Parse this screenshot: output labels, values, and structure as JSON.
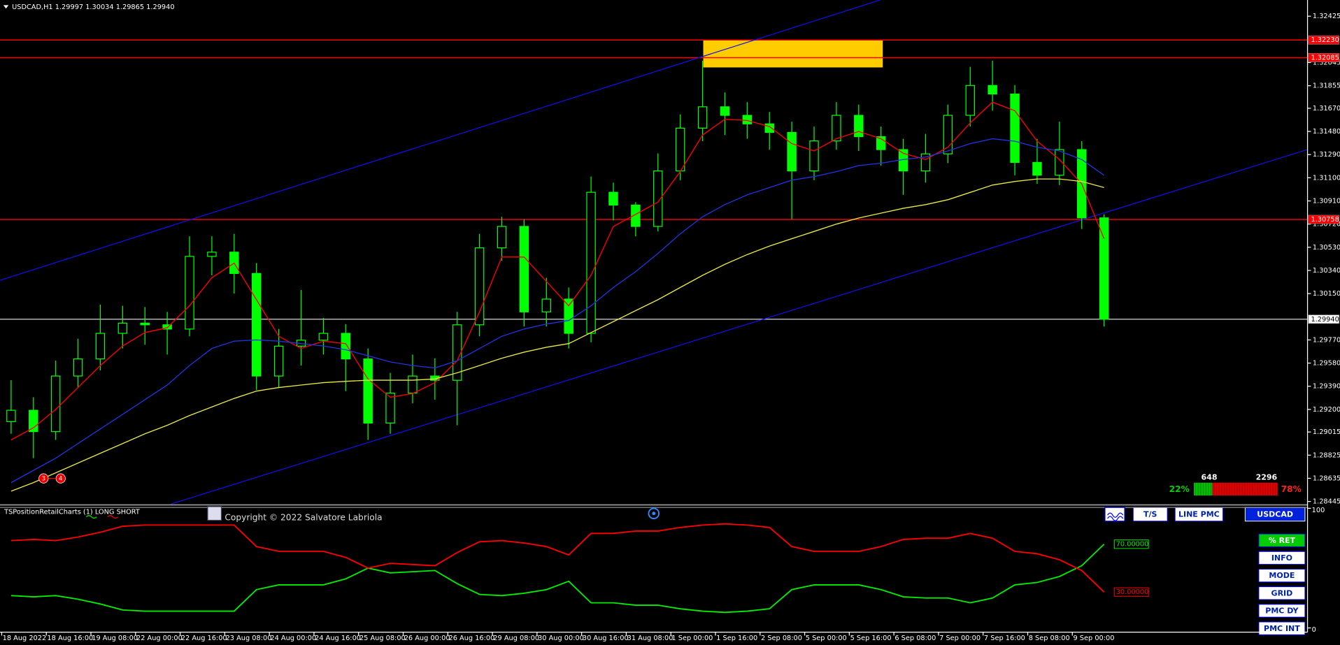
{
  "chart_data": [
    {
      "type": "candlestick",
      "title": "USDCAD,H1  1.29997 1.30034 1.29865 1.29940",
      "color": "#00ff00",
      "categories": [
        "18 Aug 2022",
        null,
        "18 Aug 16:00",
        null,
        "19 Aug 08:00",
        null,
        "22 Aug 00:00",
        null,
        "22 Aug 16:00",
        null,
        "23 Aug 08:00",
        null,
        "24 Aug 00:00",
        null,
        "24 Aug 16:00",
        null,
        "25 Aug 08:00",
        null,
        "26 Aug 00:00",
        null,
        "26 Aug 16:00",
        null,
        "29 Aug 08:00",
        null,
        "30 Aug 00:00",
        null,
        "30 Aug 16:00",
        null,
        "31 Aug 08:00",
        null,
        "1 Sep 00:00",
        null,
        "1 Sep 16:00",
        null,
        "2 Sep 08:00",
        null,
        "5 Sep 00:00",
        null,
        "5 Sep 16:00",
        null,
        "6 Sep 08:00",
        null,
        "7 Sep 00:00",
        null,
        "7 Sep 16:00",
        null,
        "8 Sep 08:00",
        null,
        "9 Sep 00:00",
        null
      ],
      "open": [
        1.291,
        1.29193,
        1.29018,
        1.29474,
        1.29614,
        1.29824,
        1.29908,
        1.29894,
        1.29859,
        1.30455,
        1.3049,
        1.30315,
        1.29474,
        1.29719,
        1.29768,
        1.29824,
        1.29614,
        1.29088,
        1.29334,
        1.29474,
        1.29439,
        1.29894,
        1.30525,
        1.30701,
        1.3,
        1.30105,
        1.29824,
        1.30981,
        1.30876,
        1.30701,
        1.31156,
        1.31507,
        1.31682,
        1.31612,
        1.31542,
        1.31472,
        1.31156,
        1.31402,
        1.31612,
        1.31437,
        1.31331,
        1.31156,
        1.31296,
        1.31612,
        1.31857,
        1.31787,
        1.31226,
        1.31121,
        1.31331,
        1.30771
      ],
      "high": [
        1.2944,
        1.293,
        1.296,
        1.2978,
        1.3006,
        1.3005,
        1.3004,
        1.3,
        1.3062,
        1.3062,
        1.3064,
        1.304,
        1.2986,
        1.3018,
        1.2995,
        1.299,
        1.297,
        1.295,
        1.2965,
        1.2962,
        1.3,
        1.3064,
        1.3078,
        1.3076,
        1.3028,
        1.302,
        1.3111,
        1.3106,
        1.309,
        1.313,
        1.3162,
        1.3206,
        1.318,
        1.3172,
        1.3164,
        1.3156,
        1.3152,
        1.3172,
        1.317,
        1.3152,
        1.3142,
        1.3146,
        1.317,
        1.3201,
        1.3206,
        1.3186,
        1.3142,
        1.3156,
        1.314,
        1.308
      ],
      "low": [
        1.29,
        1.288,
        1.2895,
        1.2938,
        1.2952,
        1.297,
        1.2973,
        1.2965,
        1.298,
        1.303,
        1.3015,
        1.2936,
        1.2938,
        1.2956,
        1.2965,
        1.2935,
        1.2895,
        1.29,
        1.2925,
        1.2928,
        1.2907,
        1.298,
        1.3042,
        1.2988,
        1.2988,
        1.297,
        1.2975,
        1.3075,
        1.3062,
        1.3066,
        1.3108,
        1.314,
        1.3145,
        1.3142,
        1.3133,
        1.3076,
        1.3108,
        1.3133,
        1.3132,
        1.312,
        1.3096,
        1.3106,
        1.3122,
        1.3152,
        1.3165,
        1.3112,
        1.3105,
        1.3104,
        1.3068,
        1.2988
      ],
      "close": [
        1.29193,
        1.29018,
        1.29474,
        1.29614,
        1.29824,
        1.29908,
        1.29894,
        1.29859,
        1.30455,
        1.3049,
        1.30315,
        1.29474,
        1.29719,
        1.29768,
        1.29824,
        1.29614,
        1.29088,
        1.29334,
        1.29474,
        1.29439,
        1.29894,
        1.30525,
        1.30701,
        1.3,
        1.30105,
        1.29824,
        1.30981,
        1.30876,
        1.30701,
        1.31156,
        1.31507,
        1.31682,
        1.31612,
        1.31542,
        1.31472,
        1.31156,
        1.31402,
        1.31612,
        1.31437,
        1.31331,
        1.31156,
        1.31296,
        1.31612,
        1.31857,
        1.31787,
        1.31226,
        1.31121,
        1.31331,
        1.30771,
        1.2994
      ],
      "series": [
        {
          "color": "#ff0000",
          "values": [
            1.2895,
            1.2905,
            1.292,
            1.2938,
            1.2956,
            1.2972,
            1.2983,
            1.2987,
            1.3005,
            1.3028,
            1.304,
            1.301,
            1.298,
            1.297,
            1.2976,
            1.2974,
            1.2945,
            1.293,
            1.2933,
            1.2942,
            1.296,
            1.3,
            1.3045,
            1.3045,
            1.3025,
            1.3005,
            1.303,
            1.307,
            1.308,
            1.309,
            1.3115,
            1.3145,
            1.3158,
            1.3157,
            1.3152,
            1.3138,
            1.3132,
            1.3142,
            1.3148,
            1.3142,
            1.313,
            1.3125,
            1.3135,
            1.3155,
            1.3172,
            1.3165,
            1.314,
            1.3125,
            1.3105,
            1.306
          ]
        },
        {
          "color": "#2233dd",
          "values": [
            1.286,
            1.287,
            1.288,
            1.2892,
            1.2904,
            1.2916,
            1.2928,
            1.294,
            1.2956,
            1.297,
            1.2976,
            1.2977,
            1.2976,
            1.2974,
            1.2972,
            1.2969,
            1.2964,
            1.2959,
            1.2956,
            1.2954,
            1.296,
            1.297,
            1.298,
            1.2986,
            1.299,
            1.2993,
            1.3005,
            1.302,
            1.3033,
            1.3048,
            1.3064,
            1.3078,
            1.3088,
            1.3096,
            1.3102,
            1.3108,
            1.3111,
            1.3115,
            1.312,
            1.3122,
            1.3125,
            1.3127,
            1.3132,
            1.3138,
            1.3142,
            1.314,
            1.3135,
            1.3132,
            1.3125,
            1.3112
          ]
        },
        {
          "color": "#e8e84a",
          "values": [
            1.2853,
            1.286,
            1.2868,
            1.2876,
            1.2884,
            1.2892,
            1.29,
            1.2907,
            1.2915,
            1.2922,
            1.2929,
            1.2935,
            1.2938,
            1.294,
            1.2942,
            1.2943,
            1.2944,
            1.2944,
            1.2944,
            1.2945,
            1.295,
            1.2956,
            1.2962,
            1.2967,
            1.2971,
            1.2974,
            1.2983,
            1.2992,
            1.3001,
            1.301,
            1.302,
            1.303,
            1.3039,
            1.3047,
            1.3054,
            1.306,
            1.3066,
            1.3072,
            1.3077,
            1.3081,
            1.3085,
            1.3088,
            1.3092,
            1.3098,
            1.3104,
            1.3107,
            1.3109,
            1.3109,
            1.3107,
            1.3102
          ]
        }
      ],
      "levels": [
        {
          "value": 1.3223,
          "label": "1.32230",
          "color": "#ff0000"
        },
        {
          "value": 1.32085,
          "color": "#ff0000"
        },
        {
          "value": 1.30758,
          "color": "#ff0000"
        },
        {
          "value": 1.2994,
          "label": "1.29940",
          "color": "#b0b0b0"
        }
      ],
      "trendlines": [
        {
          "x": [
            -0.5,
            38.96
          ],
          "y": [
            1.30259,
            1.32558
          ],
          "color": "#1010ee"
        },
        {
          "x": [
            7.16,
            58.12
          ],
          "y": [
            1.28424,
            1.31332
          ],
          "color": "#1010ee"
        }
      ],
      "zone": {
        "x": [
          31.03,
          39.08
        ],
        "y": [
          1.32005,
          1.3223
        ],
        "color": "#ffcc00"
      },
      "ylim": [
        1.28424,
        1.32558
      ],
      "yticks": [
        1.32425,
        1.32045,
        1.31855,
        {
          "value": 1.3167,
          "label": "1.31670"
        },
        {
          "value": 1.3148,
          "label": "1.31480"
        },
        {
          "value": 1.3129,
          "label": "1.31290"
        },
        {
          "value": 1.311,
          "label": "1.31100"
        },
        {
          "value": 1.3091,
          "label": "1.30910"
        },
        {
          "value": 1.3072,
          "label": "1.30720"
        },
        {
          "value": 1.3053,
          "label": "1.30530"
        },
        {
          "value": 1.3034,
          "label": "1.30340"
        },
        {
          "value": 1.3015,
          "label": "1.30150"
        },
        {
          "value": 1.2977,
          "label": "1.29770"
        },
        {
          "value": 1.2958,
          "label": "1.29580"
        },
        {
          "value": 1.2939,
          "label": "1.29390"
        },
        {
          "value": 1.292,
          "label": "1.29200"
        },
        1.29015,
        1.28825,
        1.28635,
        1.28445
      ]
    },
    {
      "type": "line",
      "title": "TSPositionRetailCharts (1) LONG SHORT",
      "series": [
        {
          "color": "#00ee00",
          "end_label": "70.00000",
          "values": [
            27,
            26,
            27,
            24,
            20,
            15,
            14,
            14,
            14,
            14,
            14,
            32,
            36,
            36,
            36,
            41,
            50,
            46,
            47,
            48,
            37,
            28,
            27,
            29,
            32,
            39,
            21,
            21,
            19,
            19,
            16,
            14,
            13,
            14,
            16,
            32,
            36,
            36,
            36,
            32,
            26,
            25,
            25,
            21,
            25,
            36,
            38,
            43,
            52,
            70
          ]
        },
        {
          "color": "#ff0000",
          "end_label": "30.00000",
          "values": [
            73,
            74,
            73,
            76,
            80,
            85,
            86,
            86,
            86,
            86,
            86,
            68,
            64,
            64,
            64,
            59,
            50,
            54,
            53,
            52,
            63,
            72,
            73,
            71,
            68,
            61,
            79,
            79,
            81,
            81,
            84,
            86,
            87,
            86,
            84,
            68,
            64,
            64,
            64,
            68,
            74,
            75,
            75,
            79,
            75,
            64,
            62,
            57,
            48,
            30
          ]
        }
      ],
      "ylim": [
        0,
        100
      ],
      "yticks": [
        100,
        0
      ]
    }
  ],
  "ui": {
    "copyright": "Copyright © 2022 Salvatore Labriola",
    "markers": [
      "3",
      "4"
    ],
    "sentiment": {
      "counts": [
        648,
        2296
      ],
      "values": [
        22,
        78
      ],
      "value_labels": [
        "22%",
        "78%"
      ],
      "colors": [
        "#00c000",
        "#e00000"
      ]
    },
    "buttons": [
      "T/S",
      "LINE PMC",
      "USDCAD"
    ],
    "side_buttons": [
      "% RET",
      "INFO",
      "MODE",
      "GRID",
      "PMC DY",
      "PMC INT"
    ]
  }
}
